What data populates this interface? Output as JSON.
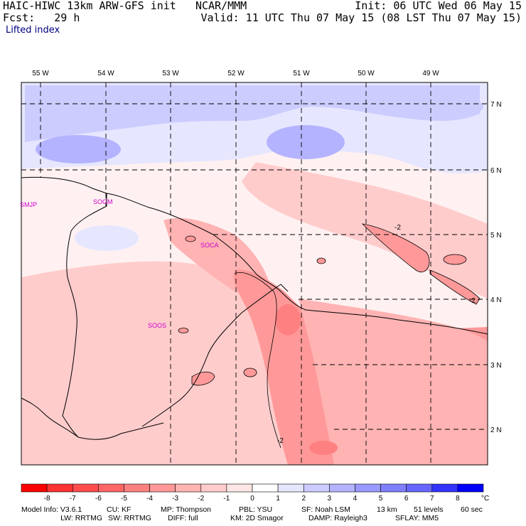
{
  "header": {
    "model": "HAIC-HIWC 13km ARW-GFS init",
    "org": "NCAR/MMM",
    "fcst_label": "Fcst:",
    "fcst_value": "29 h",
    "init": "Init: 06 UTC Wed 06 May 15",
    "valid": "Valid: 11 UTC Thu 07 May 15 (08 LST Thu 07 May 15)",
    "field": "Lifted index"
  },
  "map": {
    "lon_labels": [
      "55 W",
      "54 W",
      "53 W",
      "52 W",
      "51 W",
      "50 W",
      "49 W"
    ],
    "lat_labels": [
      "7 N",
      "6 N",
      "5 N",
      "4 N",
      "3 N",
      "2 N"
    ],
    "stations": [
      "SMJP",
      "SOGM",
      "SOCA",
      "SOOS"
    ],
    "contour_labels": [
      "-2",
      "-2",
      "-2"
    ]
  },
  "colorbar": {
    "ticks": [
      "-8",
      "-7",
      "-6",
      "-5",
      "-4",
      "-3",
      "-2",
      "-1",
      "0",
      "1",
      "2",
      "3",
      "4",
      "5",
      "6",
      "7",
      "8"
    ],
    "unit": "°C",
    "colors": [
      "#ff0000",
      "#ff3333",
      "#ff4d4d",
      "#ff6666",
      "#ff8080",
      "#ff9999",
      "#ffb3b3",
      "#ffcccc",
      "#ffe6e6",
      "#ffffff",
      "#e6e6ff",
      "#ccccff",
      "#b3b3ff",
      "#9999ff",
      "#7f7fff",
      "#6666ff",
      "#3333ff",
      "#0000ff"
    ]
  },
  "footer": {
    "row1": [
      "Model Info: V3.6.1",
      "CU: KF",
      "MP: Thompson",
      "PBL: YSU",
      "SF: Noah LSM",
      "13 km",
      "51 levels",
      "60 sec"
    ],
    "row2": [
      "LW: RRTMG",
      "SW: RRTMG",
      "DIFF: full",
      "KM: 2D Smagor",
      "DAMP: Rayleigh3",
      "SFLAY: MM5"
    ]
  }
}
